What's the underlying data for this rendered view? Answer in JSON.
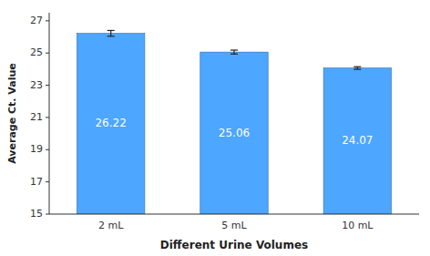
{
  "chart_data": {
    "type": "bar",
    "categories": [
      "2 mL",
      "5 mL",
      "10 mL"
    ],
    "values": [
      26.22,
      25.06,
      24.07
    ],
    "errors": [
      0.18,
      0.12,
      0.08
    ],
    "color": "#4DA6FF",
    "xlabel": "Different Urine Volumes",
    "ylabel": "Average Ct. Value",
    "ylim": [
      15,
      27.5
    ],
    "yticks": [
      15,
      17,
      19,
      21,
      23,
      25,
      27
    ],
    "data_labels": true,
    "grid": false
  }
}
